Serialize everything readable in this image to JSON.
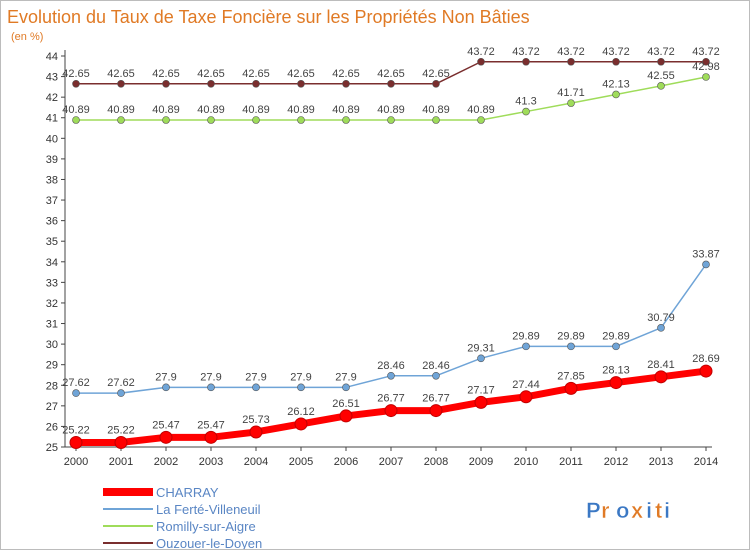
{
  "chart_data": {
    "type": "line",
    "title": "Evolution du Taux de Taxe Foncière sur les Propriétés Non Bâties",
    "ylabel": "(en %)",
    "xlabel": "",
    "ylim": [
      25,
      44
    ],
    "grid": false,
    "legend_position": "bottom-left",
    "categories": [
      "2000",
      "2001",
      "2002",
      "2003",
      "2004",
      "2005",
      "2006",
      "2007",
      "2008",
      "2009",
      "2010",
      "2011",
      "2012",
      "2013",
      "2014"
    ],
    "series": [
      {
        "name": "CHARRAY",
        "color": "#ff0000",
        "values": [
          25.22,
          25.22,
          25.47,
          25.47,
          25.73,
          26.12,
          26.51,
          26.77,
          26.77,
          27.17,
          27.44,
          27.85,
          28.13,
          28.41,
          28.69
        ],
        "labels": [
          "25.22",
          "25.22",
          "25.47",
          "25.47",
          "25.73",
          "26.12",
          "26.51",
          "26.77",
          "26.77",
          "27.17",
          "27.44",
          "27.85",
          "28.13",
          "28.41",
          "28.69"
        ]
      },
      {
        "name": "La Ferté-Villeneuil",
        "color": "#6fa4d7",
        "values": [
          27.62,
          27.62,
          27.9,
          27.9,
          27.9,
          27.9,
          27.9,
          28.46,
          28.46,
          29.31,
          29.89,
          29.89,
          29.89,
          30.79,
          33.87
        ],
        "labels": [
          "27.62",
          "27.62",
          "27.9",
          "27.9",
          "27.9",
          "27.9",
          "27.9",
          "28.46",
          "28.46",
          "29.31",
          "29.89",
          "29.89",
          "29.89",
          "30.79",
          "33.87"
        ]
      },
      {
        "name": "Romilly-sur-Aigre",
        "color": "#9fdc5a",
        "values": [
          40.89,
          40.89,
          40.89,
          40.89,
          40.89,
          40.89,
          40.89,
          40.89,
          40.89,
          40.89,
          41.3,
          41.71,
          42.13,
          42.55,
          42.98
        ],
        "labels": [
          "40.89",
          "40.89",
          "40.89",
          "40.89",
          "40.89",
          "40.89",
          "40.89",
          "40.89",
          "40.89",
          "40.89",
          "41.3",
          "41.71",
          "42.13",
          "42.55",
          "42.98"
        ]
      },
      {
        "name": "Ouzouer-le-Doyen",
        "color": "#7a2e2e",
        "values": [
          42.65,
          42.65,
          42.65,
          42.65,
          42.65,
          42.65,
          42.65,
          42.65,
          42.65,
          43.72,
          43.72,
          43.72,
          43.72,
          43.72,
          43.72
        ],
        "labels": [
          "42.65",
          "42.65",
          "42.65",
          "42.65",
          "42.65",
          "42.65",
          "42.65",
          "42.65",
          "42.65",
          "43.72",
          "43.72",
          "43.72",
          "43.72",
          "43.72",
          "43.72"
        ]
      }
    ]
  },
  "branding": {
    "logo_text": "Proxiti"
  }
}
